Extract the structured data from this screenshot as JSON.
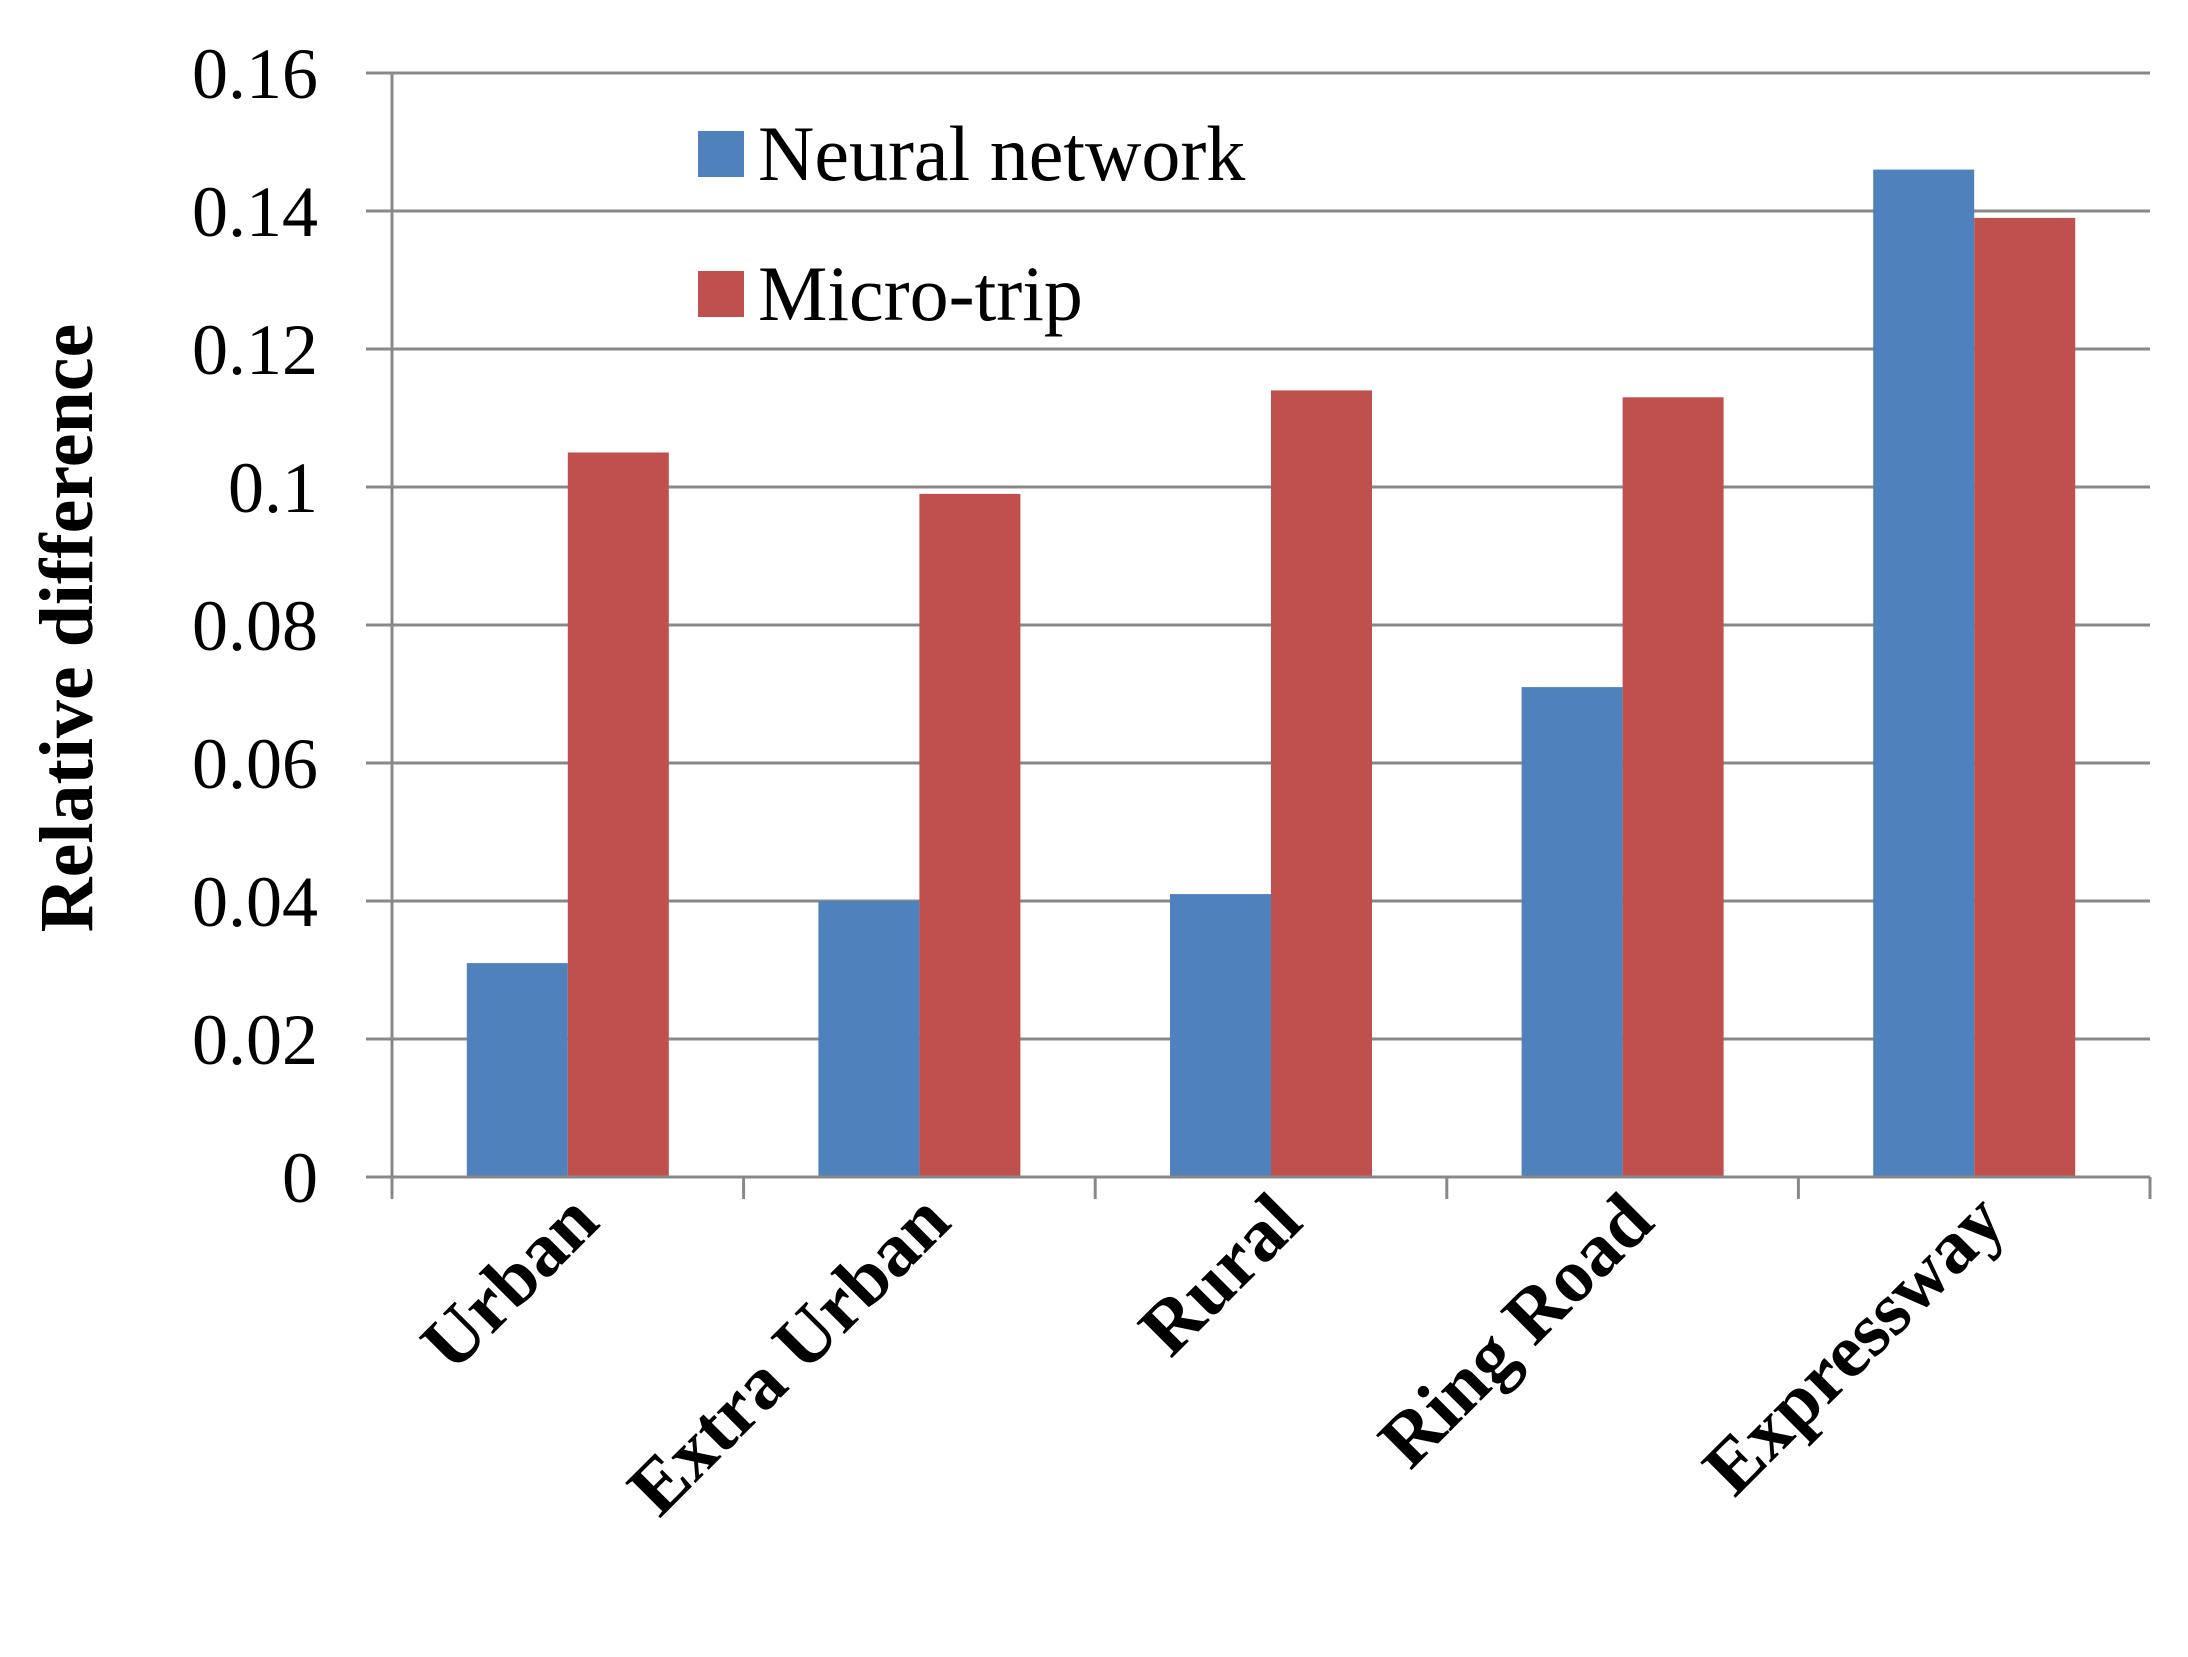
{
  "chart_data": {
    "type": "bar",
    "title": "",
    "xlabel": "",
    "ylabel": "Relative difference",
    "categories": [
      "Urban",
      "Extra Urban",
      "Rural",
      "Ring Road",
      "Expressway"
    ],
    "series": [
      {
        "name": "Neural network",
        "color": "#4f81bd",
        "values": [
          0.031,
          0.04,
          0.041,
          0.071,
          0.146
        ]
      },
      {
        "name": "Micro-trip",
        "color": "#c0504d",
        "values": [
          0.105,
          0.099,
          0.114,
          0.113,
          0.139
        ]
      }
    ],
    "ylim": [
      0,
      0.16
    ],
    "yticks": [
      "0",
      "0.02",
      "0.04",
      "0.06",
      "0.08",
      "0.1",
      "0.12",
      "0.14",
      "0.16"
    ],
    "grid": true,
    "legend_position": "top-left inside plot"
  }
}
